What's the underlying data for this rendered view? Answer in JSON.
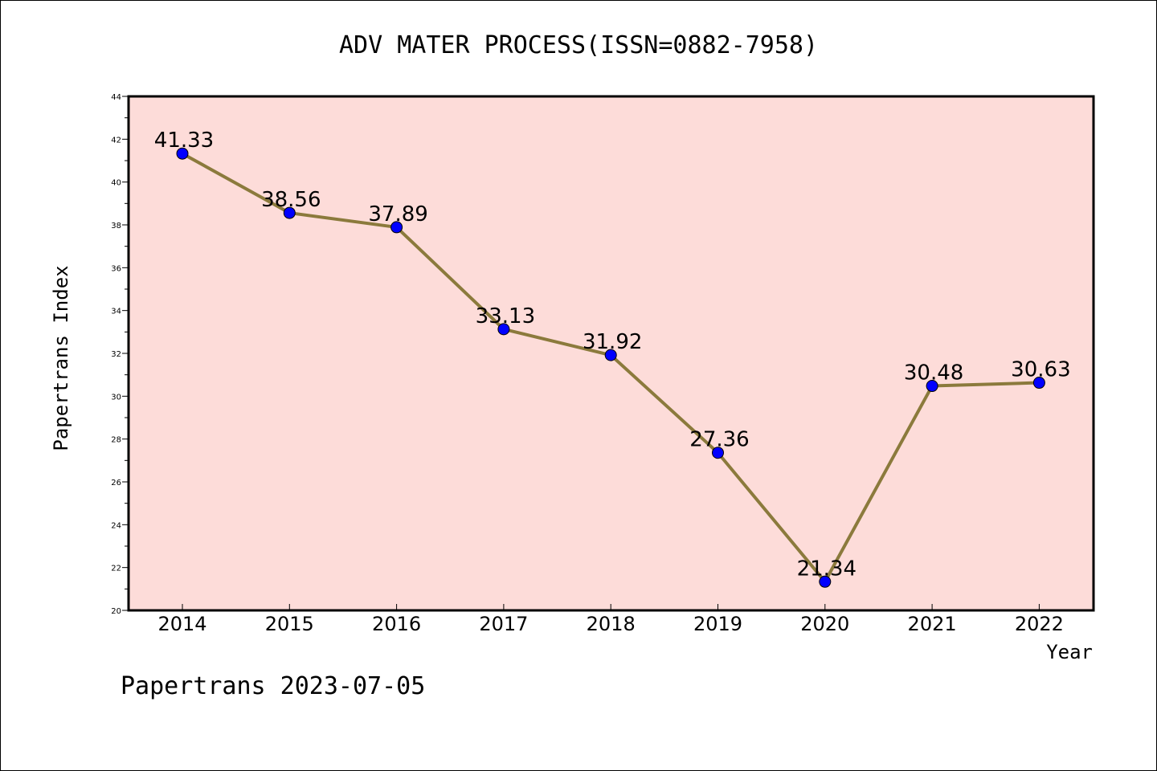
{
  "chart_data": {
    "type": "line",
    "title": "ADV MATER PROCESS(ISSN=0882-7958)",
    "xlabel": "Year",
    "ylabel": "Papertrans Index",
    "categories": [
      "2014",
      "2015",
      "2016",
      "2017",
      "2018",
      "2019",
      "2020",
      "2021",
      "2022"
    ],
    "series": [
      {
        "values": [
          41.33,
          38.56,
          37.89,
          33.13,
          31.92,
          27.36,
          21.34,
          30.48,
          30.63
        ],
        "labels": [
          "41.33",
          "38.56",
          "37.89",
          "33.13",
          "31.92",
          "27.36",
          "21.34",
          "30.48",
          "30.63"
        ]
      }
    ],
    "ylim": [
      20,
      44
    ],
    "yticks": [
      "20",
      "22",
      "24",
      "26",
      "28",
      "30",
      "32",
      "34",
      "36",
      "38",
      "40",
      "42",
      "44"
    ],
    "grid": false,
    "colors": {
      "plot_background": "#fddcd9",
      "line": "#8b7a3c",
      "marker": "#0000ff"
    }
  },
  "footer": {
    "text": "Papertrans 2023-07-05"
  }
}
